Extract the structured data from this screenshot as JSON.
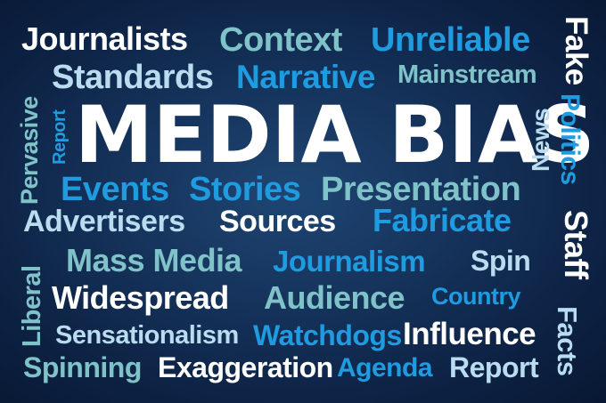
{
  "title": "MEDIA BIAS",
  "words": {
    "journalists": "Journalists",
    "context": "Context",
    "unreliable": "Unreliable",
    "fake": "Fake",
    "standards": "Standards",
    "narrative": "Narrative",
    "mainstream": "Mainstream",
    "pervasive": "Pervasive",
    "report_vertical": "Report",
    "news": "News",
    "politics": "Politics",
    "events": "Events",
    "stories": "Stories",
    "presentation": "Presentation",
    "advertisers": "Advertisers",
    "sources": "Sources",
    "fabricate": "Fabricate",
    "staff": "Staff",
    "liberal": "Liberal",
    "mass_media": "Mass Media",
    "journalism": "Journalism",
    "spin": "Spin",
    "widespread": "Widespread",
    "audience": "Audience",
    "country": "Country",
    "facts": "Facts",
    "sensationalism": "Sensationalism",
    "watchdogs": "Watchdogs",
    "influence": "Influence",
    "spinning": "Spinning",
    "exaggeration": "Exaggeration",
    "agenda": "Agenda",
    "report": "Report"
  },
  "colors": {
    "background": "#15325a",
    "white": "#ffffff",
    "teal": "#7fc3c9",
    "blue": "#1f9be0",
    "light_blue": "#b9dcf0"
  }
}
